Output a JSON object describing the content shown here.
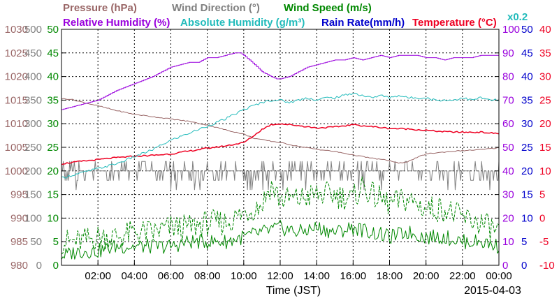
{
  "chart_data": {
    "type": "line",
    "date": "2015-04-03",
    "xlabel": "Time (JST)",
    "x_ticks": [
      "02:00",
      "04:00",
      "06:00",
      "08:00",
      "10:00",
      "12:00",
      "14:00",
      "16:00",
      "18:00",
      "20:00",
      "22:00",
      "00:00"
    ],
    "xlim_hours": [
      0,
      24
    ],
    "grid": true,
    "legend": [
      {
        "label": "Pressure (hPa)",
        "color": "#996666"
      },
      {
        "label": "Wind Direction (°)",
        "color": "#808080"
      },
      {
        "label": "Wind Speed (m/s)",
        "color": "#008800"
      },
      {
        "label": "Relative Humidity (%)",
        "color": "#9900dd"
      },
      {
        "label": "Absolute Humidity (g/m³)",
        "color": "#22bbbb"
      },
      {
        "label": "Rain Rate(mm/h)",
        "color": "#0000cc"
      },
      {
        "label": "Temperature (°C)",
        "color": "#ee0022"
      },
      {
        "label": "x0.2",
        "color": "#22bbbb"
      }
    ],
    "axes": {
      "pressure": {
        "ticks": [
          "980",
          "985",
          "990",
          "995",
          "1000",
          "1005",
          "1010",
          "1015",
          "1020",
          "1025",
          "1030"
        ],
        "range": [
          980,
          1030
        ],
        "color": "#996666"
      },
      "wind_direction": {
        "ticks": [
          "0",
          "50",
          "100",
          "150",
          "200",
          "250",
          "300",
          "350",
          "400",
          "450",
          "500"
        ],
        "range": [
          0,
          500
        ],
        "color": "#808080"
      },
      "wind_speed": {
        "ticks": [
          "0",
          "5",
          "10",
          "15",
          "20",
          "25",
          "30",
          "35",
          "40",
          "45",
          "50"
        ],
        "range": [
          0,
          50
        ],
        "color": "#008800"
      },
      "relative_humidity": {
        "ticks": [
          "0",
          "10",
          "20",
          "30",
          "40",
          "50",
          "60",
          "70",
          "80",
          "90",
          "100"
        ],
        "range": [
          0,
          100
        ],
        "color": "#9900dd"
      },
      "rain_rate": {
        "ticks": [
          "0",
          "5",
          "10",
          "15",
          "20",
          "25",
          "30",
          "35",
          "40",
          "45",
          "50"
        ],
        "range": [
          0,
          50
        ],
        "color": "#0000cc"
      },
      "temperature": {
        "ticks": [
          "-10",
          "-5",
          "0",
          "5",
          "10",
          "15",
          "20",
          "25",
          "30",
          "35",
          "40"
        ],
        "range": [
          -10,
          40
        ],
        "color": "#ee0022"
      }
    },
    "series": [
      {
        "key": "rh",
        "name": "Relative Humidity (%)",
        "color": "#9900dd",
        "axis": "relative_humidity",
        "style": "solid",
        "x": [
          0,
          1,
          2,
          3,
          4,
          5,
          6,
          7,
          7.5,
          8,
          8.5,
          9,
          9.5,
          9.8,
          10,
          10.3,
          10.6,
          11,
          11.5,
          11.8,
          12,
          12.5,
          13,
          13.5,
          14,
          14.5,
          15,
          15.5,
          16,
          16.5,
          17,
          17.5,
          18,
          18.5,
          19,
          19.5,
          20,
          20.5,
          21,
          21.5,
          22,
          22.5,
          23,
          23.5,
          24
        ],
        "y": [
          66,
          68,
          70,
          74,
          77,
          80,
          84,
          86,
          86,
          88,
          88,
          89,
          90,
          90,
          89,
          87,
          85,
          82,
          80,
          79,
          79,
          80,
          82,
          84,
          85,
          86,
          87,
          87,
          88,
          87,
          88,
          89,
          88,
          89,
          89,
          89,
          88,
          88,
          87,
          88,
          88,
          88,
          89,
          89,
          89
        ]
      },
      {
        "key": "ah",
        "name": "Absolute Humidity ×0.2",
        "color": "#22bbbb",
        "axis": "relative_humidity",
        "style": "solid",
        "x": [
          0,
          1,
          2,
          3,
          4,
          5,
          6,
          7,
          8,
          9,
          10,
          11,
          11.5,
          12,
          12.5,
          13,
          13.5,
          14,
          14.5,
          15,
          15.5,
          16,
          16.5,
          17,
          17.5,
          18,
          18.5,
          19,
          19.5,
          20,
          20.5,
          21,
          21.5,
          22,
          22.5,
          23,
          23.5,
          24
        ],
        "y": [
          37,
          39,
          41,
          43,
          46,
          49,
          53,
          56,
          59,
          62,
          66,
          69,
          70,
          70,
          69,
          70,
          71,
          70,
          71,
          71,
          72,
          73,
          72,
          71,
          72,
          71,
          72,
          71,
          71,
          71,
          70,
          70,
          70,
          71,
          70,
          71,
          70,
          70
        ]
      },
      {
        "key": "pressure",
        "name": "Pressure (hPa)",
        "color": "#996666",
        "axis": "pressure",
        "style": "solid",
        "x": [
          0,
          0.5,
          1,
          2,
          3,
          4,
          5,
          6,
          7,
          8,
          9,
          10,
          10.5,
          11,
          12,
          13,
          14,
          15,
          16,
          17,
          18,
          18.5,
          19,
          19.5,
          20,
          21,
          22,
          23,
          24
        ],
        "y": [
          1015.3,
          1015.2,
          1014.7,
          1013.8,
          1012.8,
          1012.0,
          1011.5,
          1011.0,
          1010.5,
          1009.7,
          1008.7,
          1007.8,
          1007.0,
          1006.6,
          1006.0,
          1005.2,
          1004.6,
          1004.1,
          1003.4,
          1002.7,
          1002.2,
          1001.6,
          1002.0,
          1002.8,
          1003.6,
          1004.0,
          1004.3,
          1004.5,
          1004.9
        ]
      },
      {
        "key": "temperature",
        "name": "Temperature (°C)",
        "color": "#ee0022",
        "axis": "temperature",
        "style": "solid",
        "x": [
          0,
          1,
          2,
          3,
          4,
          5,
          6,
          7,
          8,
          9,
          10,
          10.5,
          11,
          11.5,
          12,
          13,
          14,
          15,
          16,
          17,
          18,
          19,
          20,
          21,
          22,
          23,
          24
        ],
        "y": [
          11.5,
          12.0,
          12.4,
          12.8,
          13.1,
          13.3,
          13.6,
          14.2,
          14.8,
          15.3,
          16.0,
          17.3,
          18.8,
          19.8,
          20.0,
          19.6,
          19.1,
          19.3,
          19.8,
          19.4,
          19.0,
          18.9,
          18.6,
          18.3,
          18.2,
          18.2,
          17.9
        ]
      },
      {
        "key": "wind_speed",
        "name": "Wind Speed (m/s)",
        "color": "#008800",
        "axis": "wind_speed",
        "style": "solid",
        "x": [
          0,
          1,
          2,
          3,
          4,
          5,
          6,
          7,
          8,
          9,
          10,
          11,
          12,
          13,
          14,
          15,
          16,
          17,
          18,
          19,
          20,
          21,
          22,
          23,
          24
        ],
        "y": [
          2,
          3,
          3,
          4,
          4,
          4,
          4,
          5,
          5,
          5,
          6,
          7,
          8,
          7,
          8,
          7,
          8,
          7,
          6,
          7,
          6,
          6,
          5,
          5,
          4
        ]
      },
      {
        "key": "wind_gust",
        "name": "Wind Speed (m/s) gust",
        "color": "#008800",
        "axis": "wind_speed",
        "style": "dashed",
        "x": [
          0,
          1,
          2,
          3,
          4,
          5,
          6,
          7,
          8,
          9,
          10,
          11,
          11.5,
          12,
          13,
          14,
          15,
          16,
          16.5,
          17,
          18,
          19,
          20,
          21,
          22,
          23,
          24
        ],
        "y": [
          5,
          5,
          6,
          6,
          7,
          7,
          8,
          8,
          9,
          9,
          11,
          13,
          17,
          14,
          14,
          15,
          15,
          14,
          17,
          15,
          13,
          14,
          12,
          12,
          10,
          9,
          7
        ]
      },
      {
        "key": "wind_direction",
        "name": "Wind Direction (°)",
        "color": "#808080",
        "axis": "wind_direction",
        "style": "solid",
        "baseline": 200
      }
    ]
  }
}
